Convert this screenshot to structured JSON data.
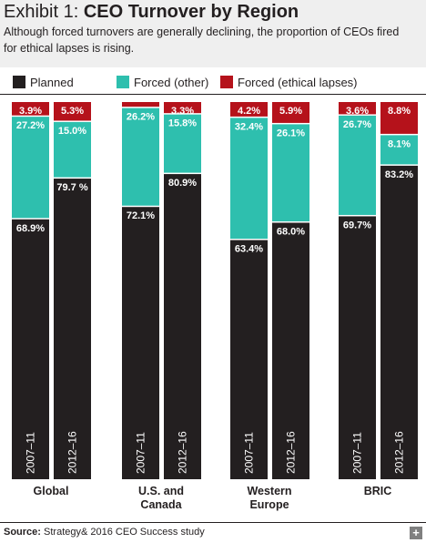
{
  "header": {
    "title_prefix": "Exhibit 1:",
    "title_main": "CEO Turnover by Region",
    "subtitle": "Although forced turnovers are generally declining, the proportion of CEOs fired for ethical lapses is rising."
  },
  "footer": {
    "source_label": "Source:",
    "source_text": "Strategy& 2016 CEO Success study",
    "expand_icon": "plus-icon",
    "expand_glyph": "+"
  },
  "colors": {
    "planned": "#231f20",
    "forced_other": "#2ebfae",
    "forced_ethical": "#b5121b",
    "text": "#231f20",
    "header_bg": "#efefef"
  },
  "chart_data": {
    "type": "bar",
    "stacked": true,
    "legend": {
      "position": "top",
      "items": [
        "Planned",
        "Forced (other)",
        "Forced (ethical lapses)"
      ]
    },
    "groups": [
      {
        "name": "Global",
        "bars": [
          {
            "period": "2007–11",
            "planned": 68.9,
            "forced_other": 27.2,
            "forced_ethical": 3.9,
            "labels": {
              "planned": "68.9%",
              "forced_other": "27.2%",
              "forced_ethical": "3.9%"
            }
          },
          {
            "period": "2012–16",
            "planned": 79.7,
            "forced_other": 15.0,
            "forced_ethical": 5.3,
            "labels": {
              "planned": "79.7 %",
              "forced_other": "15.0%",
              "forced_ethical": "5.3%"
            }
          }
        ]
      },
      {
        "name": "U.S. and\nCanada",
        "bars": [
          {
            "period": "2007–11",
            "planned": 72.1,
            "forced_other": 26.2,
            "forced_ethical": 1.6,
            "labels": {
              "planned": "72.1%",
              "forced_other": "26.2%",
              "forced_ethical": "1.6%"
            }
          },
          {
            "period": "2012–16",
            "planned": 80.9,
            "forced_other": 15.8,
            "forced_ethical": 3.3,
            "labels": {
              "planned": "80.9%",
              "forced_other": "15.8%",
              "forced_ethical": "3.3%"
            }
          }
        ]
      },
      {
        "name": "Western\nEurope",
        "bars": [
          {
            "period": "2007–11",
            "planned": 63.4,
            "forced_other": 32.4,
            "forced_ethical": 4.2,
            "labels": {
              "planned": "63.4%",
              "forced_other": "32.4%",
              "forced_ethical": "4.2%"
            }
          },
          {
            "period": "2012–16",
            "planned": 68.0,
            "forced_other": 26.1,
            "forced_ethical": 5.9,
            "labels": {
              "planned": "68.0%",
              "forced_other": "26.1%",
              "forced_ethical": "5.9%"
            }
          }
        ]
      },
      {
        "name": "BRIC",
        "bars": [
          {
            "period": "2007–11",
            "planned": 69.7,
            "forced_other": 26.7,
            "forced_ethical": 3.6,
            "labels": {
              "planned": "69.7%",
              "forced_other": "26.7%",
              "forced_ethical": "3.6%"
            }
          },
          {
            "period": "2012–16",
            "planned": 83.2,
            "forced_other": 8.1,
            "forced_ethical": 8.8,
            "labels": {
              "planned": "83.2%",
              "forced_other": "8.1%",
              "forced_ethical": "8.8%"
            }
          }
        ]
      }
    ],
    "ylim": [
      0,
      100
    ],
    "grid": false
  }
}
